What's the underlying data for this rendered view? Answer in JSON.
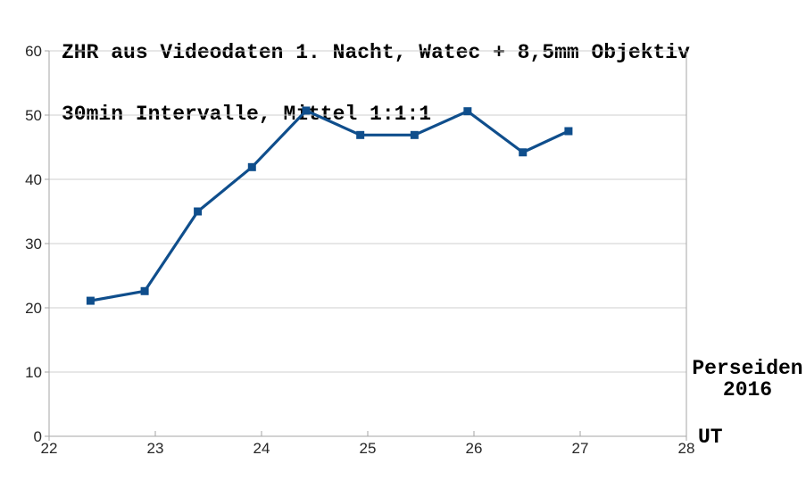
{
  "title": {
    "line1": "ZHR aus Videodaten 1. Nacht, Watec + 8,5mm Objektiv",
    "line2": "30min Intervalle, Mittel 1:1:1"
  },
  "annotation": {
    "line1": "Perseiden",
    "line2": "2016"
  },
  "x_axis_label": "UT",
  "colors": {
    "series": "#0f4e8c",
    "grid": "#cfcfcf",
    "axis": "#a6a6a6",
    "tick_text": "#262626",
    "title_text": "#000000",
    "background": "#ffffff"
  },
  "chart_data": {
    "type": "line",
    "title": "ZHR aus Videodaten 1. Nacht, Watec + 8,5mm Objektiv 30min Intervalle, Mittel 1:1:1",
    "xlabel": "UT",
    "ylabel": "",
    "xlim": [
      22,
      28
    ],
    "ylim": [
      0,
      60
    ],
    "x_ticks": [
      22,
      23,
      24,
      25,
      26,
      27,
      28
    ],
    "y_ticks": [
      0,
      10,
      20,
      30,
      40,
      50,
      60
    ],
    "grid": "horizontal",
    "legend_position": "none",
    "annotations": [
      "Perseiden",
      "2016"
    ],
    "series": [
      {
        "name": "ZHR",
        "color": "#0f4e8c",
        "marker": "square",
        "x": [
          22.39,
          22.9,
          23.4,
          23.91,
          24.42,
          24.93,
          25.44,
          25.94,
          26.46,
          26.89
        ],
        "y": [
          21.1,
          22.6,
          35.0,
          41.9,
          50.7,
          46.9,
          46.9,
          50.6,
          44.2,
          47.5
        ]
      }
    ]
  }
}
